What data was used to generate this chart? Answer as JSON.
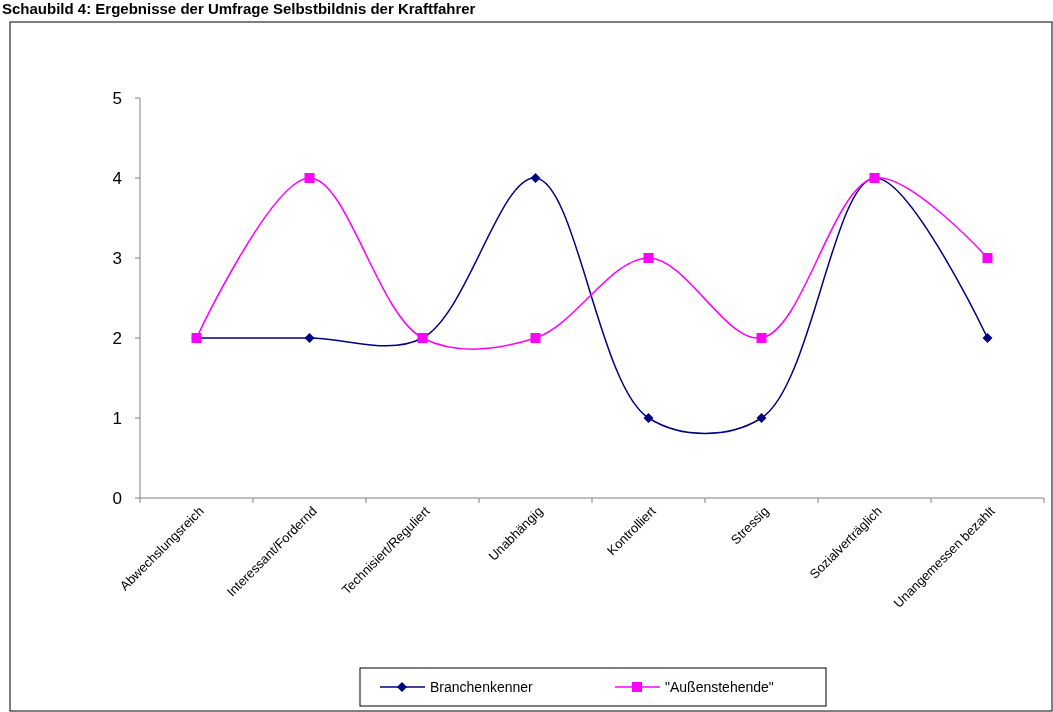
{
  "chart_data": {
    "type": "line",
    "title": "Schaubild 4:  Ergebnisse der Umfrage Selbstbildnis der Kraftfahrer",
    "categories": [
      "Abwechslungsreich",
      "Interessant/Fordernd",
      "Technisiert/Reguliert",
      "Unabhängig",
      "Kontrolliert",
      "Stressig",
      "Sozialverträglich",
      "Unangemessen bezahlt"
    ],
    "series": [
      {
        "name": "Branchenkenner",
        "color": "#000080",
        "marker": "diamond",
        "values": [
          2,
          2,
          2,
          4,
          1,
          1,
          4,
          2
        ]
      },
      {
        "name": "\"Außenstehende\"",
        "color": "#ff00ff",
        "marker": "square",
        "values": [
          2,
          4,
          2,
          2,
          3,
          2,
          4,
          3
        ]
      }
    ],
    "ylim": [
      0,
      5
    ],
    "yticks": [
      0,
      1,
      2,
      3,
      4,
      5
    ],
    "grid": false,
    "legend": "bottom"
  }
}
